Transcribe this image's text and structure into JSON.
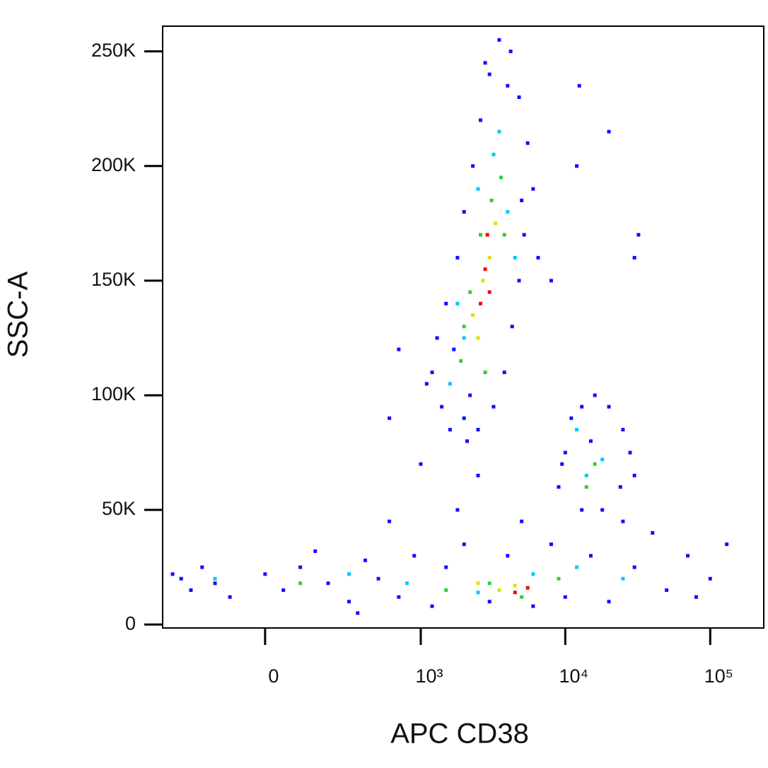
{
  "chart_data": {
    "type": "scatter",
    "x_label": "APC CD38",
    "y_label": "SSC-A",
    "xscale": "biex",
    "xlim": [
      -416,
      234000
    ],
    "xticks": [
      0,
      {
        "value": 1000,
        "label": "10³"
      },
      {
        "value": 10000,
        "label": "10⁴"
      },
      {
        "value": 100000,
        "label": "10⁵"
      }
    ],
    "ylim": [
      -1500,
      261000
    ],
    "yticks": [
      0,
      {
        "value": 50000,
        "label": "50K"
      },
      {
        "value": 100000,
        "label": "100K"
      },
      {
        "value": 150000,
        "label": "150K"
      },
      {
        "value": 200000,
        "label": "200K"
      },
      {
        "value": 250000,
        "label": "250K"
      }
    ],
    "series": [
      {
        "color": "#1010ff",
        "x": [
          1200,
          1400,
          1600,
          1300,
          1500,
          1800,
          2000,
          2300,
          2600,
          3000,
          3500,
          4200,
          4800,
          5500,
          6000,
          5200,
          4800,
          4300,
          3800,
          3200,
          2500,
          2000,
          1100,
          1700,
          2200,
          5000,
          4000,
          2800,
          2100,
          6500,
          600,
          1000,
          2500,
          8000,
          12000,
          20000,
          30000,
          32000,
          12500,
          700,
          9000,
          10000,
          11000,
          13000,
          16000,
          20000,
          25000,
          28000,
          24000,
          18000,
          13000,
          9500,
          30000,
          15000,
          -300,
          -250,
          -200,
          -150,
          -100,
          0,
          50,
          100,
          200,
          300,
          400,
          500,
          700,
          900,
          1200,
          1500,
          2000,
          3000,
          4000,
          6000,
          8000,
          10000,
          15000,
          20000,
          30000,
          40000,
          50000,
          70000,
          100000,
          130000,
          -350,
          150,
          600,
          1800,
          5000,
          25000,
          80000,
          350
        ],
        "values": [
          110000,
          95000,
          85000,
          125000,
          140000,
          160000,
          180000,
          200000,
          220000,
          240000,
          255000,
          250000,
          230000,
          210000,
          190000,
          170000,
          150000,
          130000,
          110000,
          95000,
          85000,
          90000,
          105000,
          120000,
          100000,
          185000,
          235000,
          245000,
          80000,
          160000,
          90000,
          70000,
          65000,
          150000,
          200000,
          215000,
          160000,
          170000,
          235000,
          120000,
          60000,
          75000,
          90000,
          95000,
          100000,
          95000,
          85000,
          75000,
          60000,
          50000,
          50000,
          70000,
          65000,
          80000,
          20000,
          15000,
          25000,
          18000,
          12000,
          22000,
          15000,
          25000,
          18000,
          10000,
          28000,
          20000,
          12000,
          30000,
          8000,
          25000,
          35000,
          10000,
          30000,
          8000,
          35000,
          12000,
          30000,
          10000,
          25000,
          40000,
          15000,
          30000,
          20000,
          35000,
          22000,
          32000,
          45000,
          50000,
          45000,
          45000,
          12000,
          5000
        ]
      },
      {
        "color": "#00c8ff",
        "x": [
          1600,
          2000,
          2500,
          3200,
          4000,
          4500,
          1800,
          3500,
          14000,
          18000,
          12000,
          -150,
          300,
          800,
          2500,
          6000,
          12000,
          25000
        ],
        "values": [
          105000,
          125000,
          190000,
          205000,
          180000,
          160000,
          140000,
          215000,
          65000,
          72000,
          85000,
          20000,
          22000,
          18000,
          14000,
          22000,
          25000,
          20000
        ]
      },
      {
        "color": "#30d030",
        "x": [
          1900,
          2200,
          2600,
          3100,
          3600,
          2000,
          3800,
          2800,
          16000,
          14000,
          100,
          1500,
          3000,
          5000,
          9000
        ],
        "values": [
          115000,
          145000,
          170000,
          185000,
          195000,
          130000,
          170000,
          110000,
          70000,
          60000,
          18000,
          15000,
          18000,
          12000,
          20000
        ]
      },
      {
        "color": "#e0e000",
        "x": [
          2300,
          2700,
          3000,
          2500,
          3300,
          3500,
          4500,
          2500
        ],
        "values": [
          135000,
          150000,
          160000,
          125000,
          175000,
          15000,
          17000,
          18000
        ]
      },
      {
        "color": "#ff0000",
        "x": [
          2600,
          2800,
          3000,
          2900,
          4500,
          5500
        ],
        "values": [
          140000,
          155000,
          145000,
          170000,
          14000,
          16000
        ]
      }
    ]
  }
}
